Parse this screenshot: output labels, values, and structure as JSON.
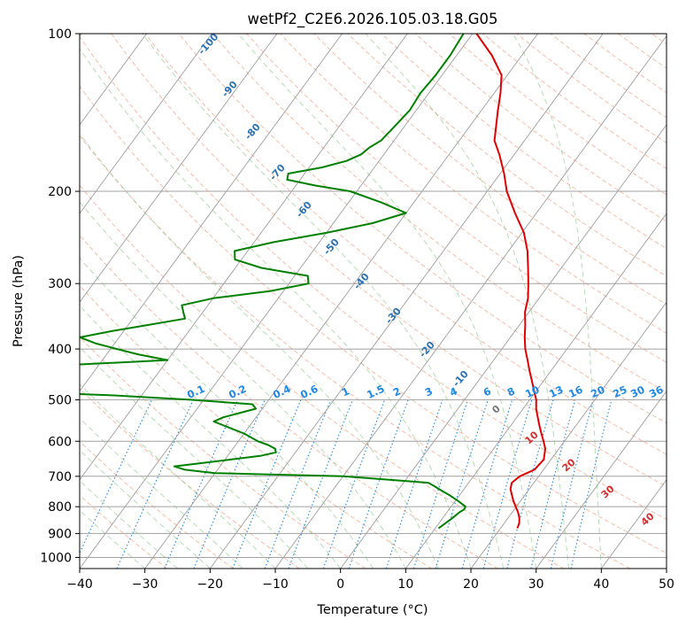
{
  "chart_data": {
    "type": "line",
    "title": "wetPf2_C2E6.2026.105.03.18.G05",
    "xlabel": "Temperature (°C)",
    "ylabel": "Pressure (hPa)",
    "xlim": [
      -40,
      50
    ],
    "ylim": [
      1050,
      100
    ],
    "y_scale": "log",
    "x_ticks": [
      "−40",
      "−30",
      "−20",
      "−10",
      "0",
      "10",
      "20",
      "30",
      "40",
      "50"
    ],
    "y_ticks": [
      "100",
      "200",
      "300",
      "400",
      "500",
      "600",
      "700",
      "800",
      "900",
      "1000"
    ],
    "grid": true,
    "series": [
      {
        "color": "#e00000",
        "pressure": [
          880,
          860,
          840,
          820,
          800,
          780,
          760,
          740,
          720,
          700,
          680,
          650,
          620,
          600,
          580,
          560,
          540,
          520,
          500,
          480,
          460,
          440,
          420,
          400,
          380,
          360,
          340,
          320,
          300,
          280,
          260,
          240,
          220,
          200,
          185,
          170,
          160,
          150,
          140,
          130,
          120,
          110,
          100
        ],
        "temperature": [
          22.6,
          22.3,
          21.7,
          20.9,
          19.9,
          18.9,
          18.0,
          17.1,
          16.6,
          17.1,
          18.6,
          18.9,
          17.9,
          16.8,
          15.6,
          14.4,
          13.2,
          12.0,
          11.0,
          9.6,
          8.2,
          6.7,
          5.2,
          3.6,
          2.2,
          0.9,
          -0.6,
          -1.7,
          -3.3,
          -5.1,
          -7.1,
          -9.7,
          -13.3,
          -17.0,
          -19.4,
          -22.3,
          -24.6,
          -26.0,
          -27.5,
          -29.0,
          -30.9,
          -34.6,
          -39.4
        ]
      },
      {
        "color": "#008000",
        "pressure": [
          880,
          860,
          840,
          820,
          810,
          800,
          780,
          760,
          740,
          730,
          720,
          700,
          690,
          680,
          670,
          660,
          650,
          640,
          630,
          620,
          610,
          600,
          580,
          570,
          560,
          550,
          540,
          530,
          520,
          510,
          500,
          490,
          480,
          470,
          460,
          450,
          440,
          430,
          420,
          410,
          400,
          390,
          380,
          370,
          360,
          350,
          340,
          330,
          320,
          310,
          300,
          290,
          280,
          270,
          260,
          250,
          240,
          230,
          220,
          210,
          200,
          195,
          190,
          185,
          180,
          175,
          170,
          165,
          160,
          150,
          140,
          130,
          120,
          110,
          100
        ],
        "temperature": [
          10.5,
          11.0,
          11.5,
          11.9,
          12.3,
          12.2,
          10.4,
          8.4,
          6.1,
          5.0,
          3.8,
          -10.0,
          -30.0,
          -35.0,
          -37.0,
          -33.0,
          -29.0,
          -25.0,
          -23.0,
          -23.5,
          -25.0,
          -27.0,
          -30.0,
          -32.0,
          -34.0,
          -36.0,
          -35.0,
          -33.0,
          -31.0,
          -32.0,
          -42.0,
          -55.0,
          -75.0,
          -90.0,
          -85.0,
          -80.0,
          -79.0,
          -66.0,
          -50.0,
          -55.0,
          -59.0,
          -63.0,
          -66.0,
          -62.0,
          -57.0,
          -52.0,
          -53.0,
          -54.0,
          -50.0,
          -42.0,
          -37.0,
          -38.0,
          -46.0,
          -51.0,
          -52.0,
          -47.0,
          -40.0,
          -34.0,
          -30.0,
          -35.0,
          -41.0,
          -47.0,
          -52.0,
          -52.5,
          -48.0,
          -45.0,
          -43.5,
          -43.0,
          -42.0,
          -41.5,
          -41.0,
          -41.3,
          -41.0,
          -41.0,
          -41.4
        ]
      }
    ],
    "dry_adiabat_labels": [
      "-100",
      "-90",
      "-80",
      "-70",
      "-60",
      "-50",
      "-40",
      "-30",
      "-20",
      "-10"
    ],
    "mixing_ratio_labels": [
      "0.1",
      "0.2",
      "0.4",
      "0.6",
      "1",
      "1.5",
      "2",
      "3",
      "4",
      "6",
      "8",
      "10",
      "13",
      "16",
      "20",
      "25",
      "30",
      "36"
    ],
    "moist_adiabat_labels": [
      "0",
      "10",
      "20",
      "30",
      "40"
    ]
  }
}
